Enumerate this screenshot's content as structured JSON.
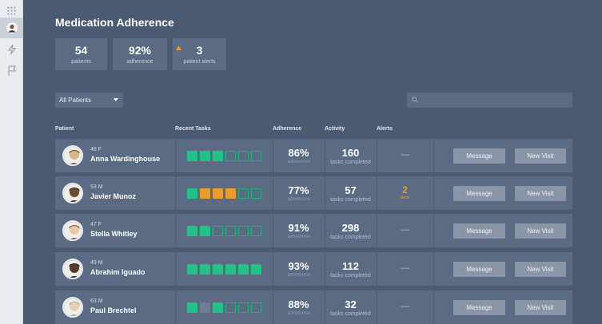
{
  "rail": {
    "items": [
      {
        "name": "apps-grid-icon"
      },
      {
        "name": "user-avatar",
        "active": true
      },
      {
        "name": "lightning-icon"
      },
      {
        "name": "flag-icon"
      }
    ]
  },
  "title": "Medication Adherence",
  "stats": [
    {
      "value": "54",
      "label": "patients",
      "warning": false
    },
    {
      "value": "92%",
      "label": "adherence",
      "warning": false
    },
    {
      "value": "3",
      "label": "patient alerts",
      "warning": true
    }
  ],
  "filter": {
    "selected": "All Patients"
  },
  "search": {
    "placeholder": ""
  },
  "columns": {
    "patient": "Patient",
    "tasks": "Recent Tasks",
    "adherence": "Adherence",
    "activity": "Activity",
    "alerts": "Alerts"
  },
  "colors": {
    "task_done": "#22c187",
    "task_late": "#e89c2c",
    "task_missed_gray": "#6e7e94",
    "alert": "#e89c2c",
    "panel": "#5b6b83",
    "background": "#4a5a72"
  },
  "patients": [
    {
      "meta": "48 F",
      "name": "Anna Wardinghouse",
      "tasks": [
        "green",
        "green",
        "green",
        "empty",
        "empty",
        "empty"
      ],
      "adherence": "86%",
      "adherence_label": "adherence",
      "activity": "160",
      "activity_label": "tasks completed",
      "alert": "—",
      "alert_label": "",
      "message": "Message",
      "new_visit": "New Visit"
    },
    {
      "meta": "53 M",
      "name": "Javier Munoz",
      "tasks": [
        "green",
        "orange",
        "orange",
        "orange",
        "empty",
        "empty"
      ],
      "adherence": "77%",
      "adherence_label": "adherence",
      "activity": "57",
      "activity_label": "tasks completed",
      "alert": "2",
      "alert_label": "alerts",
      "message": "Message",
      "new_visit": "New Visit"
    },
    {
      "meta": "47 F",
      "name": "Stella Whitley",
      "tasks": [
        "green",
        "green",
        "empty",
        "empty",
        "empty",
        "empty"
      ],
      "adherence": "91%",
      "adherence_label": "adherence",
      "activity": "298",
      "activity_label": "tasks completed",
      "alert": "—",
      "alert_label": "",
      "message": "Message",
      "new_visit": "New Visit"
    },
    {
      "meta": "49 M",
      "name": "Abrahim Iguado",
      "tasks": [
        "green",
        "green",
        "green",
        "green",
        "green",
        "green"
      ],
      "adherence": "93%",
      "adherence_label": "adherence",
      "activity": "112",
      "activity_label": "tasks completed",
      "alert": "—",
      "alert_label": "",
      "message": "Message",
      "new_visit": "New Visit"
    },
    {
      "meta": "63 M",
      "name": "Paul Brechtel",
      "tasks": [
        "green",
        "gray",
        "green",
        "empty",
        "empty",
        "empty"
      ],
      "adherence": "88%",
      "adherence_label": "adherence",
      "activity": "32",
      "activity_label": "tasks completed",
      "alert": "—",
      "alert_label": "",
      "message": "Message",
      "new_visit": "New Visit"
    }
  ]
}
